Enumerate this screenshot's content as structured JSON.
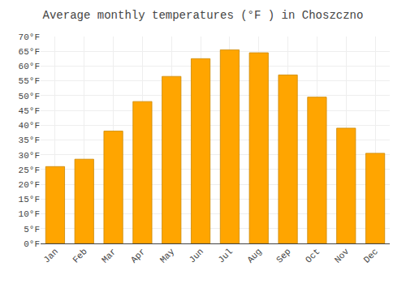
{
  "chart_data": {
    "type": "bar",
    "title": "Average monthly temperatures (°F ) in Choszczno",
    "categories": [
      "Jan",
      "Feb",
      "Mar",
      "Apr",
      "May",
      "Jun",
      "Jul",
      "Aug",
      "Sep",
      "Oct",
      "Nov",
      "Dec"
    ],
    "values": [
      26,
      28.5,
      38,
      48,
      56.5,
      62.5,
      65.5,
      64.5,
      57,
      49.5,
      39,
      30.5
    ],
    "color": "#FFA500",
    "ylim": [
      0,
      70
    ],
    "yticks": [
      {
        "value": 0,
        "label": "0°F"
      },
      {
        "value": 5,
        "label": "5°F"
      },
      {
        "value": 10,
        "label": "10°F"
      },
      {
        "value": 15,
        "label": "15°F"
      },
      {
        "value": 20,
        "label": "20°F"
      },
      {
        "value": 25,
        "label": "25°F"
      },
      {
        "value": 30,
        "label": "30°F"
      },
      {
        "value": 35,
        "label": "35°F"
      },
      {
        "value": 40,
        "label": "40°F"
      },
      {
        "value": 45,
        "label": "45°F"
      },
      {
        "value": 50,
        "label": "50°F"
      },
      {
        "value": 55,
        "label": "55°F"
      },
      {
        "value": 60,
        "label": "60°F"
      },
      {
        "value": 65,
        "label": "65°F"
      },
      {
        "value": 70,
        "label": "70°F"
      }
    ],
    "grid": true
  }
}
